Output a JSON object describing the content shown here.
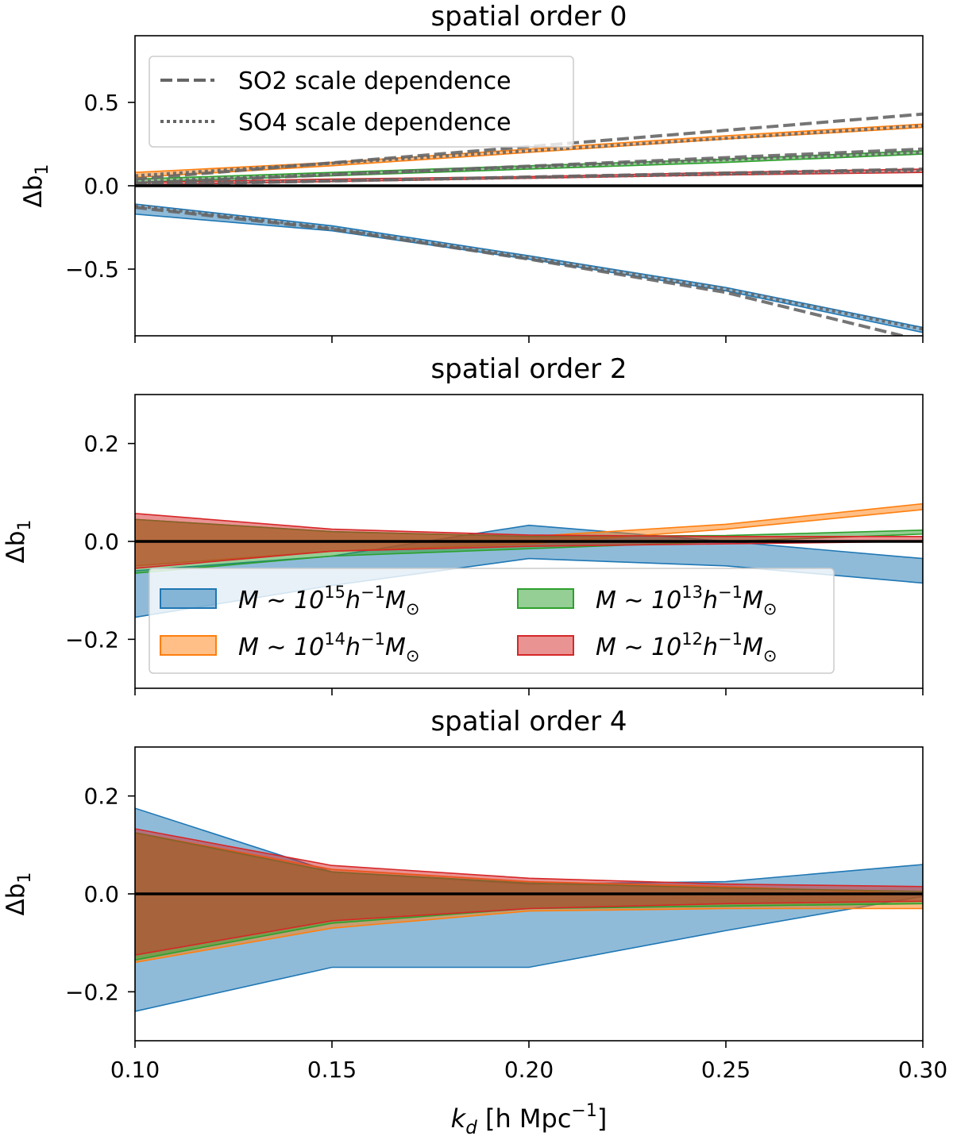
{
  "figure": {
    "xlabel_main": "k",
    "xlabel_sub": "d",
    "xlabel_rest": " [h Mpc",
    "xlabel_sup": "−1",
    "xlabel_close": "]",
    "ylabel_main": "Δb",
    "ylabel_sub": "1"
  },
  "colors": {
    "blue": "#1f77b4",
    "orange": "#ff7f0e",
    "green": "#2ca02c",
    "red": "#d62728",
    "ref": "#666666"
  },
  "chart_data": [
    {
      "type": "area",
      "title": "spatial order 0",
      "xlabel": "",
      "ylabel": "Δb1",
      "xlim": [
        0.1,
        0.3
      ],
      "ylim": [
        -0.9,
        0.9
      ],
      "xticks": [
        0.1,
        0.15,
        0.2,
        0.25,
        0.3
      ],
      "yticks": [
        -0.5,
        0.0,
        0.5
      ],
      "ytick_labels": [
        "−0.5",
        "0.0",
        "0.5"
      ],
      "x": [
        0.1,
        0.15,
        0.2,
        0.25,
        0.3
      ],
      "bands": [
        {
          "name": "M ~ 10^15 h^-1 M_sun",
          "color_key": "blue",
          "lower": [
            -0.17,
            -0.27,
            -0.44,
            -0.63,
            -0.88
          ],
          "upper": [
            -0.11,
            -0.24,
            -0.42,
            -0.61,
            -0.85
          ]
        },
        {
          "name": "M ~ 10^14 h^-1 M_sun",
          "color_key": "orange",
          "lower": [
            0.05,
            0.12,
            0.2,
            0.28,
            0.35
          ],
          "upper": [
            0.08,
            0.14,
            0.22,
            0.3,
            0.37
          ]
        },
        {
          "name": "M ~ 10^13 h^-1 M_sun",
          "color_key": "green",
          "lower": [
            0.02,
            0.06,
            0.1,
            0.14,
            0.19
          ],
          "upper": [
            0.04,
            0.08,
            0.12,
            0.16,
            0.21
          ]
        },
        {
          "name": "M ~ 10^12 h^-1 M_sun",
          "color_key": "red",
          "lower": [
            0.005,
            0.025,
            0.045,
            0.065,
            0.08
          ],
          "upper": [
            0.02,
            0.04,
            0.055,
            0.08,
            0.1
          ]
        }
      ],
      "reference_lines": [
        {
          "name": "SO2 scale dependence",
          "style": "dashed",
          "curves": [
            {
              "x": [
                0.1,
                0.15,
                0.2,
                0.25,
                0.3
              ],
              "y": [
                -0.13,
                -0.26,
                -0.44,
                -0.64,
                -0.93
              ]
            },
            {
              "x": [
                0.1,
                0.3
              ],
              "y": [
                0.04,
                0.43
              ]
            },
            {
              "x": [
                0.1,
                0.3
              ],
              "y": [
                0.015,
                0.22
              ]
            },
            {
              "x": [
                0.1,
                0.3
              ],
              "y": [
                0.005,
                0.1
              ]
            }
          ]
        },
        {
          "name": "SO4 scale dependence",
          "style": "dotted",
          "curves": [
            {
              "x": [
                0.1,
                0.15,
                0.2,
                0.25,
                0.3
              ],
              "y": [
                -0.12,
                -0.255,
                -0.43,
                -0.62,
                -0.86
              ]
            },
            {
              "x": [
                0.1,
                0.3
              ],
              "y": [
                0.06,
                0.36
              ]
            },
            {
              "x": [
                0.1,
                0.3
              ],
              "y": [
                0.025,
                0.2
              ]
            },
            {
              "x": [
                0.1,
                0.3
              ],
              "y": [
                0.01,
                0.09
              ]
            }
          ]
        }
      ],
      "legend": {
        "position": "top-left",
        "entries": [
          "SO2 scale dependence",
          "SO4 scale dependence"
        ]
      }
    },
    {
      "type": "area",
      "title": "spatial order 2",
      "xlabel": "",
      "ylabel": "Δb1",
      "xlim": [
        0.1,
        0.3
      ],
      "ylim": [
        -0.3,
        0.3
      ],
      "xticks": [
        0.1,
        0.15,
        0.2,
        0.25,
        0.3
      ],
      "yticks": [
        -0.2,
        0.0,
        0.2
      ],
      "ytick_labels": [
        "−0.2",
        "0.0",
        "0.2"
      ],
      "x": [
        0.1,
        0.15,
        0.2,
        0.25,
        0.3
      ],
      "bands": [
        {
          "name": "M ~ 10^15 h^-1 M_sun",
          "color_key": "blue",
          "lower": [
            -0.155,
            -0.09,
            -0.035,
            -0.05,
            -0.085
          ],
          "upper": [
            -0.06,
            -0.03,
            0.033,
            0.0,
            -0.035
          ]
        },
        {
          "name": "M ~ 10^14 h^-1 M_sun",
          "color_key": "orange",
          "lower": [
            -0.05,
            -0.02,
            -0.005,
            0.025,
            0.065
          ],
          "upper": [
            0.045,
            0.02,
            0.01,
            0.035,
            0.077
          ]
        },
        {
          "name": "M ~ 10^13 h^-1 M_sun",
          "color_key": "green",
          "lower": [
            -0.065,
            -0.03,
            -0.015,
            0.0,
            0.015
          ],
          "upper": [
            0.045,
            0.02,
            0.01,
            0.012,
            0.023
          ]
        },
        {
          "name": "M ~ 10^12 h^-1 M_sun",
          "color_key": "red",
          "lower": [
            -0.055,
            -0.02,
            -0.01,
            -0.005,
            0.0
          ],
          "upper": [
            0.057,
            0.025,
            0.013,
            0.01,
            0.01
          ]
        }
      ],
      "legend": {
        "position": "lower-center",
        "entries": [
          {
            "label_prefix": "M ∼ 10",
            "exponent": "15",
            "label_suffix": "h",
            "suffix_sup": "−1",
            "label_tail": "M",
            "tail_sub": "⊙",
            "color_key": "blue"
          },
          {
            "label_prefix": "M ∼ 10",
            "exponent": "13",
            "label_suffix": "h",
            "suffix_sup": "−1",
            "label_tail": "M",
            "tail_sub": "⊙",
            "color_key": "green"
          },
          {
            "label_prefix": "M ∼ 10",
            "exponent": "14",
            "label_suffix": "h",
            "suffix_sup": "−1",
            "label_tail": "M",
            "tail_sub": "⊙",
            "color_key": "orange"
          },
          {
            "label_prefix": "M ∼ 10",
            "exponent": "12",
            "label_suffix": "h",
            "suffix_sup": "−1",
            "label_tail": "M",
            "tail_sub": "⊙",
            "color_key": "red"
          }
        ]
      }
    },
    {
      "type": "area",
      "title": "spatial order 4",
      "xlabel": "k_d [h Mpc^-1]",
      "ylabel": "Δb1",
      "xlim": [
        0.1,
        0.3
      ],
      "ylim": [
        -0.3,
        0.3
      ],
      "xticks": [
        0.1,
        0.15,
        0.2,
        0.25,
        0.3
      ],
      "xtick_labels": [
        "0.10",
        "0.15",
        "0.20",
        "0.25",
        "0.30"
      ],
      "yticks": [
        -0.2,
        0.0,
        0.2
      ],
      "ytick_labels": [
        "−0.2",
        "0.0",
        "0.2"
      ],
      "x": [
        0.1,
        0.15,
        0.2,
        0.25,
        0.3
      ],
      "bands": [
        {
          "name": "M ~ 10^15 h^-1 M_sun",
          "color_key": "blue",
          "lower": [
            -0.24,
            -0.15,
            -0.15,
            -0.075,
            -0.005
          ],
          "upper": [
            0.175,
            0.045,
            0.02,
            0.025,
            0.06
          ]
        },
        {
          "name": "M ~ 10^14 h^-1 M_sun",
          "color_key": "orange",
          "lower": [
            -0.14,
            -0.07,
            -0.035,
            -0.03,
            -0.03
          ],
          "upper": [
            0.125,
            0.05,
            0.025,
            0.015,
            0.0
          ]
        },
        {
          "name": "M ~ 10^13 h^-1 M_sun",
          "color_key": "green",
          "lower": [
            -0.135,
            -0.06,
            -0.03,
            -0.025,
            -0.02
          ],
          "upper": [
            0.125,
            0.045,
            0.022,
            0.012,
            0.005
          ]
        },
        {
          "name": "M ~ 10^12 h^-1 M_sun",
          "color_key": "red",
          "lower": [
            -0.125,
            -0.055,
            -0.03,
            -0.02,
            -0.015
          ],
          "upper": [
            0.133,
            0.058,
            0.032,
            0.02,
            0.015
          ]
        }
      ]
    }
  ]
}
